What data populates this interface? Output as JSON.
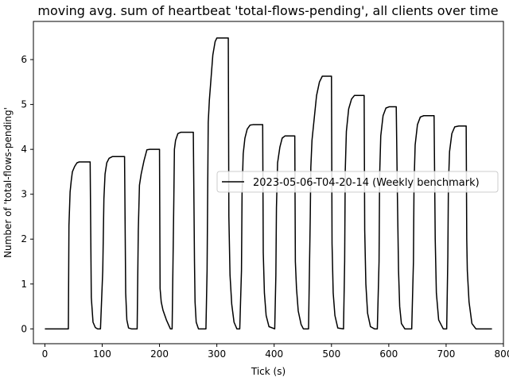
{
  "chart_data": {
    "type": "line",
    "title": "moving avg. sum of heartbeat 'total-flows-pending', all clients over time",
    "xlabel": "Tick (s)",
    "ylabel": "Number of 'total-flows-pending'",
    "xlim": [
      -20,
      800
    ],
    "ylim": [
      -0.33,
      6.85
    ],
    "xticks": [
      0,
      100,
      200,
      300,
      400,
      500,
      600,
      700,
      800
    ],
    "yticks": [
      0,
      1,
      2,
      3,
      4,
      5,
      6
    ],
    "grid": false,
    "legend_position": "center-right",
    "colors": {
      "line": "#000000",
      "axis": "#000000",
      "background": "#ffffff"
    },
    "series": [
      {
        "name": "2023-05-06-T04-20-14 (Weekly benchmark)",
        "x": [
          0,
          41,
          42,
          44,
          46,
          48,
          52,
          56,
          60,
          70,
          79,
          81,
          84,
          88,
          92,
          97,
          101,
          103,
          105,
          108,
          112,
          118,
          128,
          139,
          141,
          143,
          146,
          151,
          161,
          163,
          165,
          168,
          173,
          178,
          183,
          190,
          200,
          201,
          203,
          206,
          212,
          219,
          222,
          225,
          226,
          228,
          232,
          237,
          245,
          250,
          259,
          261,
          262,
          264,
          268,
          273,
          281,
          283,
          284,
          285,
          287,
          290,
          293,
          297,
          300,
          305,
          320,
          321,
          323,
          326,
          330,
          335,
          340,
          343,
          344,
          346,
          349,
          353,
          358,
          363,
          373,
          380,
          381,
          383,
          386,
          391,
          401,
          403,
          404,
          406,
          410,
          414,
          419,
          430,
          436,
          437,
          439,
          442,
          447,
          451,
          460,
          463,
          464,
          466,
          470,
          474,
          479,
          484,
          496,
          500,
          501,
          503,
          506,
          511,
          521,
          523,
          524,
          526,
          530,
          535,
          540,
          556,
          557,
          558,
          560,
          563,
          568,
          575,
          580,
          583,
          584,
          586,
          590,
          595,
          601,
          613,
          615,
          617,
          619,
          622,
          628,
          633,
          640,
          643,
          644,
          646,
          650,
          655,
          661,
          668,
          679,
          681,
          683,
          687,
          695,
          701,
          703,
          704,
          706,
          710,
          715,
          722,
          735,
          736,
          737,
          740,
          745,
          752,
          760,
          780
        ],
        "y": [
          0,
          0,
          2.3,
          3.05,
          3.3,
          3.5,
          3.62,
          3.7,
          3.72,
          3.72,
          3.72,
          0.7,
          0.15,
          0.03,
          0,
          0,
          1.3,
          2.9,
          3.45,
          3.7,
          3.8,
          3.84,
          3.84,
          3.84,
          0.8,
          0.2,
          0.02,
          0,
          0,
          2.2,
          3.2,
          3.45,
          3.75,
          3.99,
          4.0,
          4.0,
          4.0,
          0.9,
          0.6,
          0.42,
          0.2,
          0,
          0,
          2.9,
          4.0,
          4.2,
          4.35,
          4.38,
          4.38,
          4.38,
          4.38,
          1.5,
          0.6,
          0.15,
          0,
          0,
          0,
          1.3,
          3.0,
          4.6,
          5.1,
          5.6,
          6.1,
          6.4,
          6.48,
          6.48,
          6.48,
          2.5,
          1.2,
          0.55,
          0.15,
          0,
          0,
          1.3,
          3.0,
          3.9,
          4.25,
          4.45,
          4.54,
          4.55,
          4.55,
          4.55,
          1.7,
          0.8,
          0.3,
          0.05,
          0,
          1.2,
          2.7,
          3.7,
          4.05,
          4.25,
          4.3,
          4.3,
          4.3,
          1.5,
          0.9,
          0.4,
          0.1,
          0,
          0,
          2.5,
          3.6,
          4.2,
          4.7,
          5.2,
          5.5,
          5.63,
          5.63,
          5.63,
          1.9,
          0.8,
          0.3,
          0.02,
          0,
          1.5,
          3.5,
          4.4,
          4.9,
          5.12,
          5.2,
          5.2,
          5.2,
          2.2,
          1.0,
          0.35,
          0.05,
          0,
          0,
          1.5,
          3.4,
          4.3,
          4.75,
          4.92,
          4.95,
          4.95,
          3.0,
          1.3,
          0.5,
          0.12,
          0,
          0,
          0,
          1.5,
          3.2,
          4.1,
          4.55,
          4.72,
          4.75,
          4.75,
          4.75,
          2.0,
          0.8,
          0.2,
          0,
          0,
          1.6,
          3.2,
          3.95,
          4.35,
          4.5,
          4.52,
          4.52,
          2.0,
          1.3,
          0.6,
          0.12,
          0,
          0,
          0
        ]
      }
    ]
  }
}
